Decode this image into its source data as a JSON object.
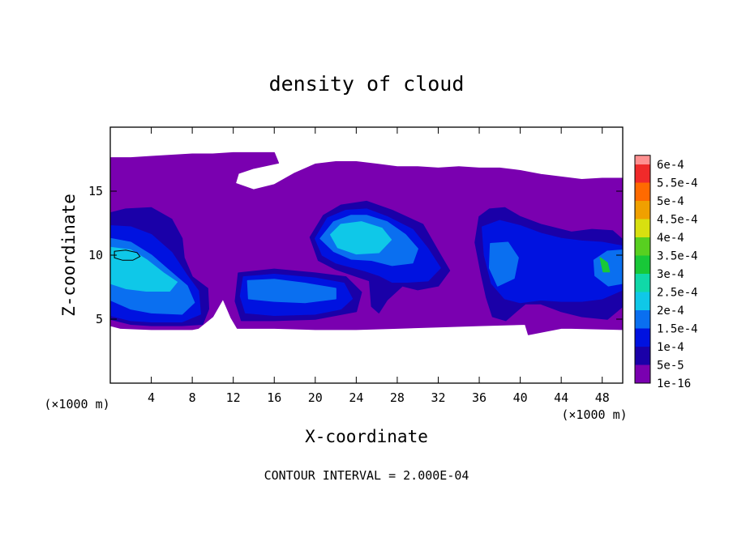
{
  "chart_data": {
    "type": "heatmap",
    "title": "density of cloud",
    "xlabel": "X-coordinate",
    "ylabel": "Z-coordinate",
    "x_unit_label": "(×1000 m)",
    "x_unit_label_right": "(×1000 m)",
    "xlim": [
      0,
      50
    ],
    "ylim": [
      0,
      20
    ],
    "x_ticks": [
      4,
      8,
      12,
      16,
      20,
      24,
      28,
      32,
      36,
      40,
      44,
      48
    ],
    "y_ticks": [
      5,
      10,
      15
    ],
    "footer": "CONTOUR INTERVAL = 2.000E-04",
    "colorbar": {
      "levels": [
        "1e-16",
        "5e-5",
        "1e-4",
        "1.5e-4",
        "2e-4",
        "2.5e-4",
        "3e-4",
        "3.5e-4",
        "4e-4",
        "4.5e-4",
        "5e-4",
        "5.5e-4",
        "6e-4"
      ],
      "colors": [
        "#7a00b0",
        "#1a00a8",
        "#0012e0",
        "#0a6ff0",
        "#0fc8e8",
        "#10d8a8",
        "#18c838",
        "#58d020",
        "#d8e010",
        "#f0a000",
        "#ff6a00",
        "#f02a2a",
        "#ff9090"
      ]
    },
    "regions": [
      {
        "level": 0,
        "points": [
          [
            0,
            17.6
          ],
          [
            2,
            17.6
          ],
          [
            4,
            17.7
          ],
          [
            6,
            17.8
          ],
          [
            8,
            17.9
          ],
          [
            10,
            17.9
          ],
          [
            12,
            18
          ],
          [
            14,
            18
          ],
          [
            16,
            18
          ],
          [
            16.4,
            17.2
          ],
          [
            14,
            16.8
          ],
          [
            12.5,
            16.4
          ],
          [
            12.2,
            15.6
          ],
          [
            14,
            15.1
          ],
          [
            16,
            15.5
          ],
          [
            18,
            16.4
          ],
          [
            20,
            17.1
          ],
          [
            22,
            17.3
          ],
          [
            24,
            17.3
          ],
          [
            26,
            17.1
          ],
          [
            28,
            16.9
          ],
          [
            30,
            16.9
          ],
          [
            32,
            16.8
          ],
          [
            34,
            16.9
          ],
          [
            36,
            16.8
          ],
          [
            38,
            16.8
          ],
          [
            40,
            16.6
          ],
          [
            42,
            16.3
          ],
          [
            44,
            16.1
          ],
          [
            46,
            15.9
          ],
          [
            48,
            16
          ],
          [
            50,
            16
          ],
          [
            50,
            4.2
          ],
          [
            45,
            4.3
          ],
          [
            44,
            4.3
          ],
          [
            40.8,
            3.8
          ],
          [
            40.5,
            4.6
          ],
          [
            36,
            4.5
          ],
          [
            32,
            4.4
          ],
          [
            28,
            4.3
          ],
          [
            24,
            4.2
          ],
          [
            20,
            4.2
          ],
          [
            16,
            4.3
          ],
          [
            12.4,
            4.3
          ],
          [
            11.8,
            5.1
          ],
          [
            11,
            6.6
          ],
          [
            10,
            5.2
          ],
          [
            8.6,
            4.3
          ],
          [
            8,
            4.2
          ],
          [
            4,
            4.2
          ],
          [
            1,
            4.3
          ],
          [
            0,
            4.5
          ]
        ]
      },
      {
        "level": 1,
        "points": [
          [
            0,
            13.3
          ],
          [
            1.5,
            13.6
          ],
          [
            4,
            13.7
          ],
          [
            6,
            12.8
          ],
          [
            7,
            11.3
          ],
          [
            7.2,
            9.8
          ],
          [
            8,
            8.3
          ],
          [
            9.5,
            7.4
          ],
          [
            9.6,
            5.8
          ],
          [
            9,
            4.6
          ],
          [
            7,
            4.5
          ],
          [
            4,
            4.5
          ],
          [
            2,
            4.6
          ],
          [
            0,
            5
          ]
        ]
      },
      {
        "level": 2,
        "points": [
          [
            0,
            12.3
          ],
          [
            2,
            12.2
          ],
          [
            4,
            11.6
          ],
          [
            6,
            10.2
          ],
          [
            7.5,
            8.4
          ],
          [
            8.6,
            7.2
          ],
          [
            8.8,
            5.4
          ],
          [
            7,
            4.8
          ],
          [
            4,
            4.8
          ],
          [
            2,
            4.9
          ],
          [
            0,
            5.3
          ]
        ]
      },
      {
        "level": 3,
        "points": [
          [
            0,
            11.3
          ],
          [
            2,
            11
          ],
          [
            4,
            10
          ],
          [
            5.6,
            8.9
          ],
          [
            7.5,
            7.6
          ],
          [
            8.2,
            6.3
          ],
          [
            7,
            5.4
          ],
          [
            4,
            5.5
          ],
          [
            2,
            5.8
          ],
          [
            0,
            6.5
          ]
        ]
      },
      {
        "level": 4,
        "points": [
          [
            0,
            10.6
          ],
          [
            2,
            10.4
          ],
          [
            3.6,
            9.6
          ],
          [
            5.2,
            8.6
          ],
          [
            6.5,
            7.9
          ],
          [
            5.8,
            7.2
          ],
          [
            3.5,
            7.2
          ],
          [
            1.5,
            7.4
          ],
          [
            0,
            7.8
          ]
        ]
      },
      {
        "level": 1,
        "points": [
          [
            12.5,
            8.6
          ],
          [
            16,
            8.9
          ],
          [
            20,
            8.6
          ],
          [
            23,
            8.3
          ],
          [
            24.5,
            7.1
          ],
          [
            24,
            5.6
          ],
          [
            20,
            5
          ],
          [
            16,
            4.9
          ],
          [
            12.8,
            4.9
          ],
          [
            12.2,
            6.4
          ]
        ]
      },
      {
        "level": 2,
        "points": [
          [
            13,
            8.3
          ],
          [
            16,
            8.5
          ],
          [
            20,
            8.2
          ],
          [
            22.8,
            7.8
          ],
          [
            23.6,
            6.6
          ],
          [
            22.5,
            5.8
          ],
          [
            20,
            5.4
          ],
          [
            16,
            5.3
          ],
          [
            13.2,
            5.5
          ],
          [
            12.7,
            6.8
          ]
        ]
      },
      {
        "level": 3,
        "points": [
          [
            13.4,
            8
          ],
          [
            16,
            8.1
          ],
          [
            19,
            7.8
          ],
          [
            22,
            7.4
          ],
          [
            22,
            6.6
          ],
          [
            19,
            6.3
          ],
          [
            16,
            6.4
          ],
          [
            13.5,
            6.6
          ]
        ]
      },
      {
        "level": 1,
        "points": [
          [
            19.5,
            11.4
          ],
          [
            20.8,
            13.1
          ],
          [
            22.5,
            13.9
          ],
          [
            25,
            14.2
          ],
          [
            27.5,
            13.5
          ],
          [
            30.5,
            12.4
          ],
          [
            32,
            10.3
          ],
          [
            33.1,
            8.8
          ],
          [
            32,
            7.6
          ],
          [
            30,
            7.3
          ],
          [
            28.5,
            7.6
          ],
          [
            27,
            6.5
          ],
          [
            26.2,
            5.5
          ],
          [
            25.5,
            6
          ],
          [
            25.3,
            8
          ],
          [
            24.2,
            8.3
          ],
          [
            22,
            8.9
          ],
          [
            20.3,
            9.6
          ]
        ]
      },
      {
        "level": 2,
        "points": [
          [
            20,
            11.3
          ],
          [
            21.2,
            12.9
          ],
          [
            23,
            13.5
          ],
          [
            25,
            13.6
          ],
          [
            27,
            13
          ],
          [
            29.5,
            12
          ],
          [
            31,
            10.5
          ],
          [
            32.2,
            9
          ],
          [
            31,
            8
          ],
          [
            29,
            7.9
          ],
          [
            27.5,
            7.9
          ],
          [
            26.3,
            8.4
          ],
          [
            24.8,
            8.8
          ],
          [
            22,
            9.4
          ],
          [
            20.7,
            10
          ]
        ]
      },
      {
        "level": 3,
        "points": [
          [
            20.5,
            11.3
          ],
          [
            21.8,
            12.6
          ],
          [
            23.5,
            13.1
          ],
          [
            25,
            13.1
          ],
          [
            27,
            12.6
          ],
          [
            28.8,
            11.6
          ],
          [
            30,
            10.5
          ],
          [
            29.5,
            9.4
          ],
          [
            27.5,
            9.2
          ],
          [
            25.5,
            9.6
          ],
          [
            23.5,
            9.7
          ],
          [
            21.8,
            10.3
          ]
        ]
      },
      {
        "level": 4,
        "points": [
          [
            21.5,
            11.6
          ],
          [
            22.5,
            12.4
          ],
          [
            24.5,
            12.6
          ],
          [
            26.5,
            12.1
          ],
          [
            27.4,
            11.2
          ],
          [
            26.2,
            10.2
          ],
          [
            24,
            10.1
          ],
          [
            22.2,
            10.6
          ]
        ]
      },
      {
        "level": 1,
        "points": [
          [
            36,
            13
          ],
          [
            37,
            13.6
          ],
          [
            38.5,
            13.7
          ],
          [
            40,
            13
          ],
          [
            42,
            12.4
          ],
          [
            45,
            11.8
          ],
          [
            47,
            12
          ],
          [
            49,
            11.9
          ],
          [
            50,
            11.2
          ],
          [
            50,
            6
          ],
          [
            48.5,
            5
          ],
          [
            46,
            5.2
          ],
          [
            44,
            5.6
          ],
          [
            42,
            6.2
          ],
          [
            40.5,
            6.2
          ],
          [
            39.6,
            5.6
          ],
          [
            38.6,
            4.9
          ],
          [
            37.3,
            5.2
          ],
          [
            36.7,
            6.7
          ],
          [
            36.2,
            8.5
          ],
          [
            35.6,
            11
          ]
        ]
      },
      {
        "level": 2,
        "points": [
          [
            36.3,
            12.2
          ],
          [
            38,
            12.7
          ],
          [
            40,
            12.3
          ],
          [
            42,
            11.7
          ],
          [
            44,
            11.3
          ],
          [
            46,
            11.1
          ],
          [
            48,
            11
          ],
          [
            50,
            10.7
          ],
          [
            50,
            7.3
          ],
          [
            48,
            6.6
          ],
          [
            46,
            6.4
          ],
          [
            44,
            6.4
          ],
          [
            42,
            6.5
          ],
          [
            40,
            6.3
          ],
          [
            38.5,
            6.6
          ],
          [
            37.2,
            7.8
          ],
          [
            36.5,
            10
          ]
        ]
      },
      {
        "level": 3,
        "points": [
          [
            37.1,
            10.9
          ],
          [
            38.8,
            11
          ],
          [
            39.8,
            9.8
          ],
          [
            39.4,
            8.2
          ],
          [
            37.8,
            7.6
          ],
          [
            37,
            9
          ]
        ]
      },
      {
        "level": 3,
        "points": [
          [
            47.2,
            9.6
          ],
          [
            48.5,
            10.3
          ],
          [
            50,
            10.4
          ],
          [
            50,
            7.8
          ],
          [
            48.6,
            7.6
          ],
          [
            47.3,
            8.4
          ]
        ]
      },
      {
        "level": 6,
        "points": [
          [
            47.8,
            9.8
          ],
          [
            48.5,
            9.4
          ],
          [
            48.7,
            8.7
          ],
          [
            48.1,
            8.7
          ]
        ]
      },
      {
        "level": 0,
        "points": [
          [
            22,
            17.1
          ],
          [
            24,
            17.2
          ],
          [
            26,
            17
          ],
          [
            28,
            16.8
          ],
          [
            29,
            16.5
          ],
          [
            28,
            16.3
          ],
          [
            26,
            16.4
          ],
          [
            24,
            16.4
          ],
          [
            22,
            16.5
          ]
        ]
      }
    ],
    "contour_lines": [
      {
        "level": "2e-4",
        "points": [
          [
            0.4,
            10.3
          ],
          [
            1.5,
            10.4
          ],
          [
            2.6,
            10.2
          ],
          [
            2.9,
            9.9
          ],
          [
            2.2,
            9.6
          ],
          [
            1.2,
            9.6
          ],
          [
            0.4,
            9.8
          ]
        ]
      }
    ]
  }
}
